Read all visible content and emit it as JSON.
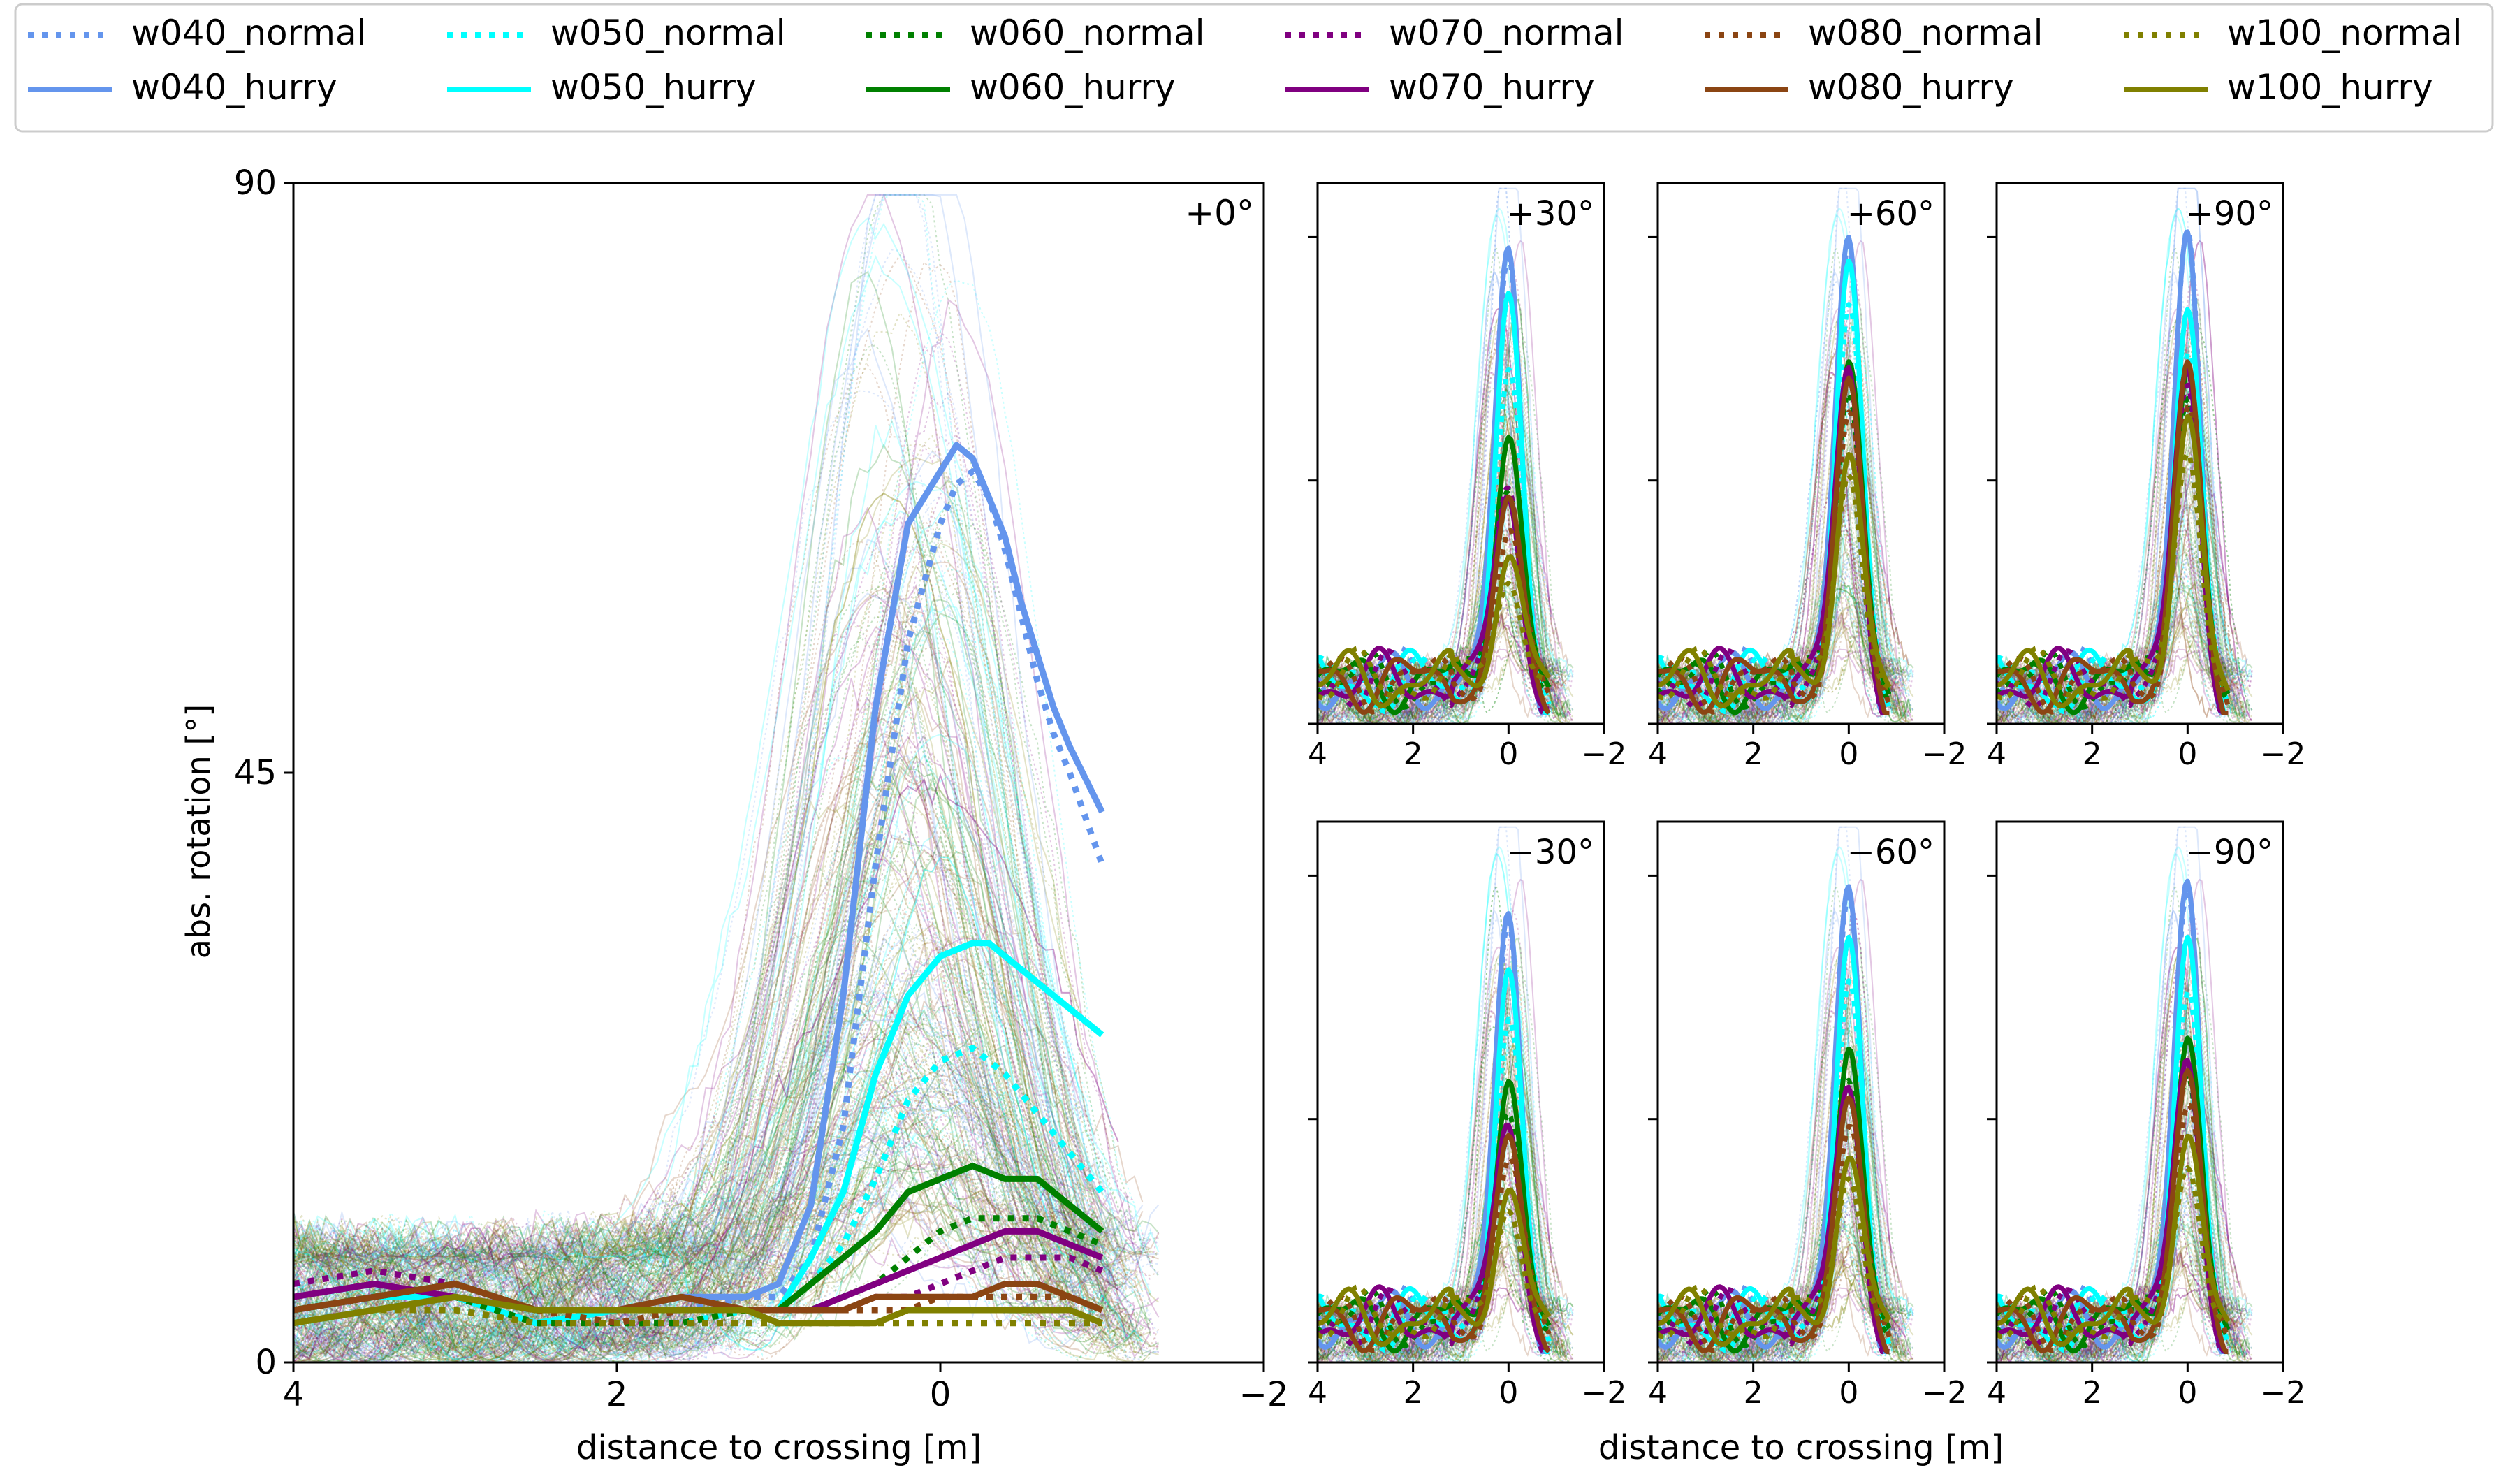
{
  "legend": {
    "location": "top",
    "entries": [
      {
        "name": "w040_normal",
        "color": "#6495ed",
        "style": "dotted"
      },
      {
        "name": "w050_normal",
        "color": "#00ffff",
        "style": "dotted"
      },
      {
        "name": "w060_normal",
        "color": "#008000",
        "style": "dotted"
      },
      {
        "name": "w070_normal",
        "color": "#800080",
        "style": "dotted"
      },
      {
        "name": "w080_normal",
        "color": "#8b4513",
        "style": "dotted"
      },
      {
        "name": "w100_normal",
        "color": "#808000",
        "style": "dotted"
      },
      {
        "name": "w040_hurry",
        "color": "#6495ed",
        "style": "solid"
      },
      {
        "name": "w050_hurry",
        "color": "#00ffff",
        "style": "solid"
      },
      {
        "name": "w060_hurry",
        "color": "#008000",
        "style": "solid"
      },
      {
        "name": "w070_hurry",
        "color": "#800080",
        "style": "solid"
      },
      {
        "name": "w080_hurry",
        "color": "#8b4513",
        "style": "solid"
      },
      {
        "name": "w100_hurry",
        "color": "#808000",
        "style": "solid"
      }
    ]
  },
  "axis_labels": {
    "ylabel": "abs. rotation [°]",
    "xlabel_main": "distance to crossing [m]",
    "xlabel_small": "distance to crossing [m]"
  },
  "chart_data": [
    {
      "type": "line",
      "panel": "main",
      "title": "+0°",
      "xlabel": "distance to crossing [m]",
      "ylabel": "abs. rotation [°]",
      "xlim": [
        4,
        -2
      ],
      "ylim": [
        0,
        90
      ],
      "xticks": [
        "4",
        "2",
        "0",
        "−2"
      ],
      "yticks": [
        "0",
        "45",
        "90"
      ],
      "series": [
        {
          "name": "w040_hurry",
          "x": [
            4,
            3.5,
            3,
            2.5,
            2,
            1.6,
            1.2,
            1,
            0.8,
            0.6,
            0.4,
            0.2,
            0,
            -0.1,
            -0.2,
            -0.3,
            -0.4,
            -0.5,
            -0.6,
            -0.7,
            -0.8,
            -1
          ],
          "y": [
            4,
            5,
            5,
            3,
            4,
            5,
            5,
            6,
            12,
            28,
            50,
            64,
            68,
            70,
            69,
            66,
            63,
            58,
            54,
            50,
            47,
            42
          ]
        },
        {
          "name": "w040_normal",
          "x": [
            4,
            3.5,
            3,
            2.5,
            2,
            1.6,
            1.2,
            1,
            0.8,
            0.6,
            0.4,
            0.2,
            0,
            -0.1,
            -0.2,
            -0.3,
            -0.4,
            -0.5,
            -0.6,
            -0.7,
            -0.8,
            -1
          ],
          "y": [
            3,
            4,
            5,
            3,
            4,
            4,
            5,
            5,
            8,
            18,
            38,
            55,
            64,
            67,
            68,
            66,
            62,
            57,
            52,
            48,
            45,
            38
          ]
        },
        {
          "name": "w050_hurry",
          "x": [
            4,
            3.5,
            3,
            2.5,
            2,
            1.6,
            1.2,
            1,
            0.8,
            0.6,
            0.4,
            0.2,
            0,
            -0.2,
            -0.3,
            -0.4,
            -0.6,
            -0.8,
            -1
          ],
          "y": [
            4,
            5,
            5,
            3,
            4,
            4,
            4,
            4,
            8,
            13,
            22,
            28,
            31,
            32,
            32,
            31,
            29,
            27,
            25
          ]
        },
        {
          "name": "w050_normal",
          "x": [
            4,
            3.5,
            3,
            2.5,
            2,
            1.6,
            1.2,
            1,
            0.8,
            0.6,
            0.4,
            0.2,
            0,
            -0.2,
            -0.4,
            -0.6,
            -0.8,
            -1
          ],
          "y": [
            3,
            4,
            4,
            3,
            3,
            3,
            4,
            4,
            6,
            9,
            14,
            20,
            23,
            24,
            22,
            19,
            16,
            13
          ]
        },
        {
          "name": "w060_hurry",
          "x": [
            4,
            3.5,
            3,
            2.5,
            2,
            1.6,
            1.2,
            1,
            0.8,
            0.6,
            0.4,
            0.2,
            0,
            -0.2,
            -0.4,
            -0.6,
            -0.8,
            -1
          ],
          "y": [
            4,
            5,
            6,
            4,
            4,
            4,
            4,
            4,
            6,
            8,
            10,
            13,
            14,
            15,
            14,
            14,
            12,
            10
          ]
        },
        {
          "name": "w060_normal",
          "x": [
            4,
            3.5,
            3,
            2.5,
            2,
            1.6,
            1.2,
            1,
            0.8,
            0.6,
            0.4,
            0.2,
            0,
            -0.2,
            -0.4,
            -0.6,
            -0.8,
            -1
          ],
          "y": [
            3,
            4,
            5,
            3,
            3,
            3,
            4,
            4,
            4,
            5,
            6,
            8,
            10,
            11,
            11,
            11,
            10,
            9
          ]
        },
        {
          "name": "w070_hurry",
          "x": [
            4,
            3.5,
            3,
            2.5,
            2,
            1.6,
            1.2,
            1,
            0.8,
            0.6,
            0.4,
            0.2,
            0,
            -0.2,
            -0.4,
            -0.6,
            -0.8,
            -1
          ],
          "y": [
            5,
            6,
            5,
            4,
            4,
            4,
            4,
            4,
            4,
            5,
            6,
            7,
            8,
            9,
            10,
            10,
            9,
            8
          ]
        },
        {
          "name": "w070_normal",
          "x": [
            4,
            3.5,
            3,
            2.5,
            2,
            1.6,
            1.2,
            1,
            0.8,
            0.6,
            0.4,
            0.2,
            0,
            -0.2,
            -0.4,
            -0.6,
            -0.8,
            -1
          ],
          "y": [
            6,
            7,
            6,
            4,
            4,
            4,
            4,
            4,
            4,
            4,
            5,
            5,
            6,
            7,
            8,
            8,
            8,
            7
          ]
        },
        {
          "name": "w080_hurry",
          "x": [
            4,
            3.5,
            3,
            2.5,
            2,
            1.6,
            1.2,
            1,
            0.8,
            0.6,
            0.4,
            0.2,
            0,
            -0.2,
            -0.4,
            -0.6,
            -0.8,
            -1
          ],
          "y": [
            4,
            5,
            6,
            4,
            4,
            5,
            4,
            4,
            4,
            4,
            5,
            5,
            5,
            5,
            6,
            6,
            5,
            4
          ]
        },
        {
          "name": "w080_normal",
          "x": [
            4,
            3.5,
            3,
            2.5,
            2,
            1.6,
            1.2,
            1,
            0.8,
            0.6,
            0.4,
            0.2,
            0,
            -0.2,
            -0.4,
            -0.6,
            -0.8,
            -1
          ],
          "y": [
            4,
            5,
            6,
            4,
            3,
            4,
            4,
            4,
            4,
            4,
            4,
            4,
            5,
            5,
            5,
            5,
            5,
            4
          ]
        },
        {
          "name": "w100_hurry",
          "x": [
            4,
            3.5,
            3,
            2.5,
            2,
            1.6,
            1.2,
            1,
            0.8,
            0.6,
            0.4,
            0.2,
            0,
            -0.2,
            -0.4,
            -0.6,
            -0.8,
            -1
          ],
          "y": [
            3,
            4,
            5,
            4,
            4,
            4,
            4,
            3,
            3,
            3,
            3,
            4,
            4,
            4,
            4,
            4,
            4,
            3
          ]
        },
        {
          "name": "w100_normal",
          "x": [
            4,
            3.5,
            3,
            2.5,
            2,
            1.6,
            1.2,
            1,
            0.8,
            0.6,
            0.4,
            0.2,
            0,
            -0.2,
            -0.4,
            -0.6,
            -0.8,
            -1
          ],
          "y": [
            3,
            4,
            4,
            3,
            3,
            3,
            3,
            3,
            3,
            3,
            3,
            3,
            3,
            3,
            3,
            3,
            3,
            3
          ]
        }
      ]
    },
    {
      "type": "line",
      "panel": "small",
      "title": "+30°",
      "xlim": [
        4,
        -2
      ],
      "ylim": [
        0,
        100
      ],
      "xticks": [
        "4",
        "2",
        "0",
        "−2"
      ],
      "peaks": [
        88,
        83,
        76,
        65,
        56,
        47,
        43,
        41,
        38,
        34,
        33,
        30
      ]
    },
    {
      "type": "line",
      "panel": "small",
      "title": "+60°",
      "xlim": [
        4,
        -2
      ],
      "ylim": [
        0,
        100
      ],
      "xticks": [
        "4",
        "2",
        "0",
        "−2"
      ],
      "peaks": [
        90,
        85,
        82,
        77,
        70,
        65,
        67,
        62,
        60,
        56,
        52,
        50
      ]
    },
    {
      "type": "line",
      "panel": "small",
      "title": "+90°",
      "xlim": [
        4,
        -2
      ],
      "ylim": [
        0,
        100
      ],
      "xticks": [
        "4",
        "2",
        "0",
        "−2"
      ],
      "peaks": [
        91,
        88,
        73,
        68,
        69,
        64,
        67,
        60,
        63,
        57,
        59,
        54
      ]
    },
    {
      "type": "line",
      "panel": "small",
      "title": "−30°",
      "xlim": [
        4,
        -2
      ],
      "ylim": [
        0,
        100
      ],
      "xticks": [
        "4",
        "2",
        "0",
        "−2"
      ],
      "peaks": [
        83,
        78,
        69,
        63,
        55,
        50,
        45,
        41,
        38,
        36,
        34,
        32
      ]
    },
    {
      "type": "line",
      "panel": "small",
      "title": "−60°",
      "xlim": [
        4,
        -2
      ],
      "ylim": [
        0,
        100
      ],
      "xticks": [
        "4",
        "2",
        "0",
        "−2"
      ],
      "peaks": [
        88,
        83,
        75,
        70,
        61,
        56,
        52,
        48,
        45,
        42,
        40,
        38
      ]
    },
    {
      "type": "line",
      "panel": "small",
      "title": "−90°",
      "xlim": [
        4,
        -2
      ],
      "ylim": [
        0,
        100
      ],
      "xticks": [
        "4",
        "2",
        "0",
        "−2"
      ],
      "peaks": [
        89,
        84,
        75,
        68,
        63,
        57,
        57,
        52,
        50,
        46,
        44,
        40
      ]
    }
  ]
}
